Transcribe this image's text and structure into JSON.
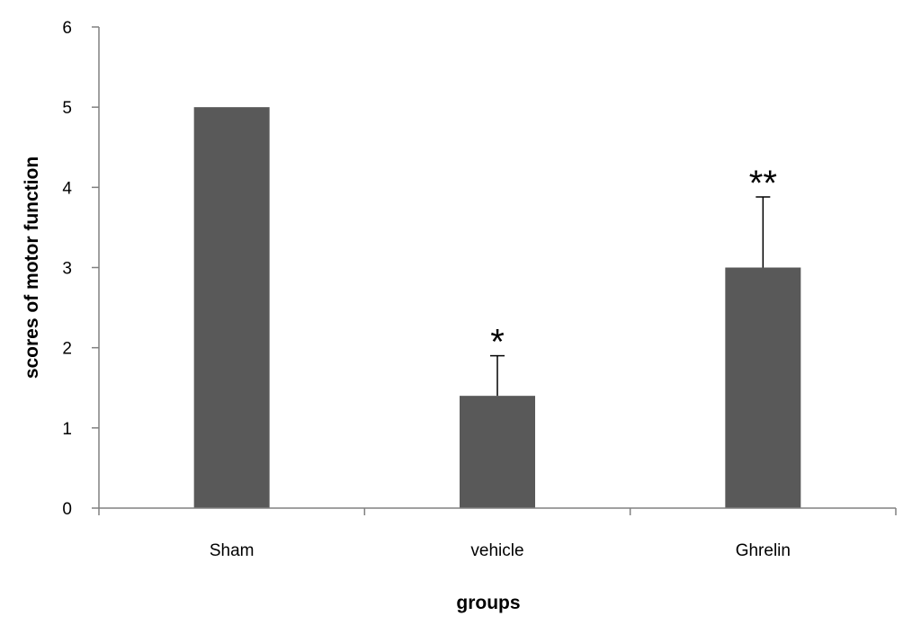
{
  "chart_data": {
    "type": "bar",
    "categories": [
      "Sham",
      "vehicle",
      "Ghrelin"
    ],
    "values": [
      5,
      1.4,
      3
    ],
    "errors": [
      0,
      0.5,
      0.88
    ],
    "annotations": [
      "",
      "*",
      "**"
    ],
    "title": "",
    "xlabel": "groups",
    "ylabel": "scores  of motor  function",
    "ylim": [
      0,
      6
    ],
    "yticks": [
      0,
      1,
      2,
      3,
      4,
      5,
      6
    ],
    "grid": false,
    "legend": "none",
    "colors": {
      "bar": "#595959",
      "axis": "#808080",
      "error_bar": "#000000",
      "text": "#000000"
    }
  }
}
